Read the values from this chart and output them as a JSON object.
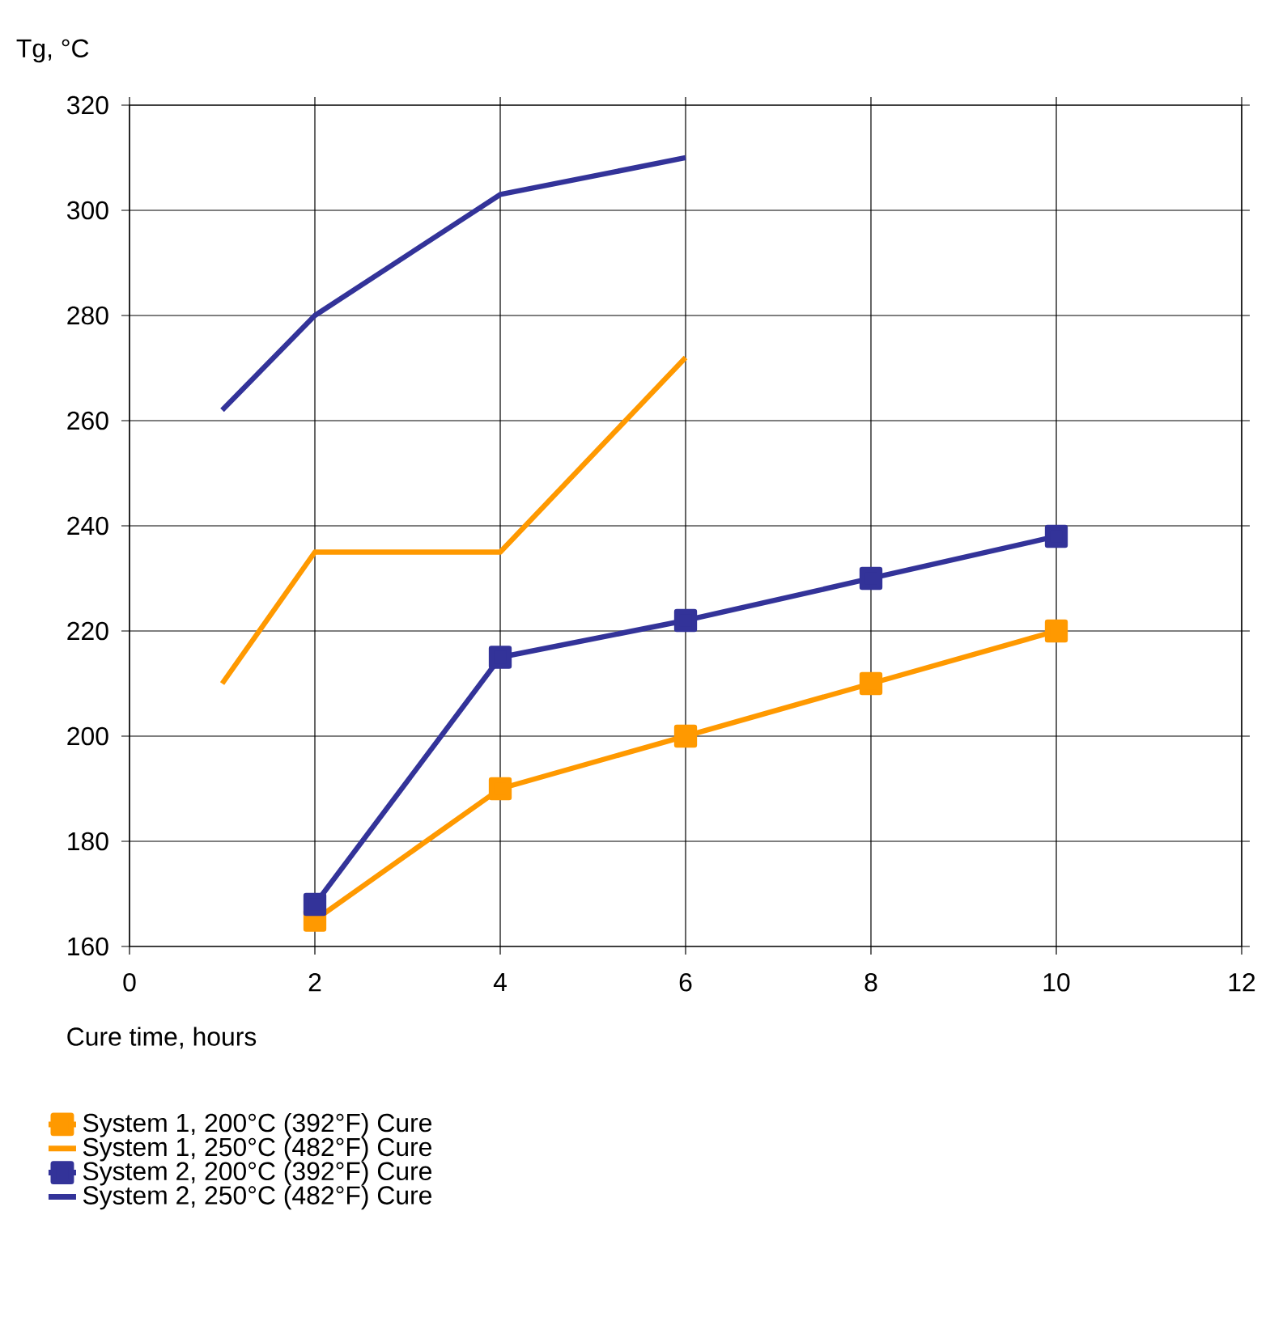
{
  "chart_data": {
    "type": "line",
    "xlabel": "Cure time, hours",
    "ylabel": "Tg, °C",
    "xlim": [
      0,
      12
    ],
    "xticks": [
      0,
      2,
      4,
      6,
      8,
      10,
      12
    ],
    "ylim": [
      160,
      320
    ],
    "yticks": [
      160,
      180,
      200,
      220,
      240,
      260,
      280,
      300,
      320
    ],
    "grid": true,
    "legend": "bottom",
    "series": [
      {
        "name": "System 1, 200°C (392°F) Cure",
        "color": "#ff9900",
        "marker": "square",
        "x": [
          2,
          4,
          6,
          8,
          10
        ],
        "values": [
          165,
          190,
          200,
          210,
          220
        ]
      },
      {
        "name": "System 1, 250°C (482°F) Cure",
        "color": "#ff9900",
        "x": [
          1,
          2,
          4,
          6
        ],
        "values": [
          210,
          235,
          235,
          272
        ]
      },
      {
        "name": "System 2, 200°C (392°F) Cure",
        "color": "#333399",
        "marker": "square",
        "x": [
          2,
          4,
          6,
          8,
          10
        ],
        "values": [
          168,
          215,
          222,
          230,
          238
        ]
      },
      {
        "name": "System 2, 250°C (482°F) Cure",
        "color": "#333399",
        "x": [
          1,
          2,
          4,
          6
        ],
        "values": [
          262,
          280,
          303,
          310
        ]
      }
    ]
  }
}
